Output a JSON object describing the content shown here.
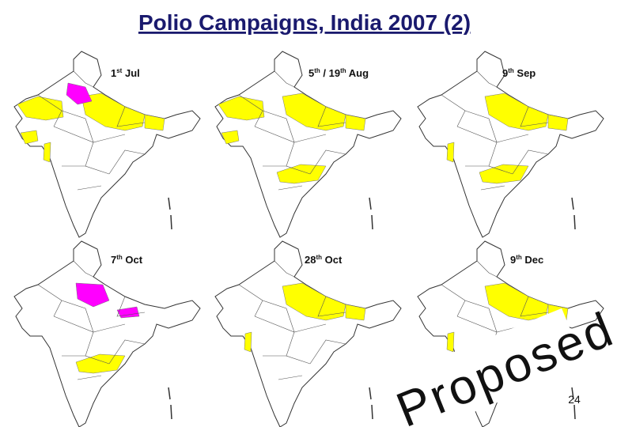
{
  "header": {
    "title": "Polio Campaigns, India 2007 (2)"
  },
  "maps": [
    {
      "label": {
        "parts": [
          "1",
          "st",
          " Jul"
        ]
      }
    },
    {
      "label": {
        "parts": [
          "5",
          "th",
          " / 19",
          "th",
          " Aug"
        ]
      }
    },
    {
      "label": {
        "parts": [
          "9",
          "th",
          " Sep"
        ]
      }
    },
    {
      "label": {
        "parts": [
          "7",
          "th",
          " Oct"
        ]
      }
    },
    {
      "label": {
        "parts": [
          "28",
          "th",
          " Oct"
        ]
      }
    },
    {
      "label": {
        "parts": [
          "9",
          "th",
          " Dec"
        ]
      }
    }
  ],
  "stamp": "Proposed",
  "page_number": "24"
}
